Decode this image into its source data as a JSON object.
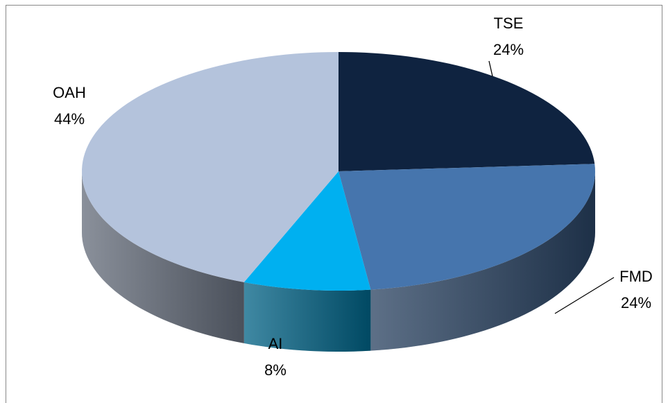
{
  "chart_data": {
    "type": "pie",
    "categories": [
      "TSE",
      "FMD",
      "AI",
      "OAH"
    ],
    "values": [
      24,
      24,
      8,
      44
    ],
    "value_labels": [
      "24%",
      "24%",
      "8%",
      "44%"
    ],
    "colors": [
      "#0f2340",
      "#4675ad",
      "#00b0f0",
      "#b4c3dc"
    ]
  }
}
